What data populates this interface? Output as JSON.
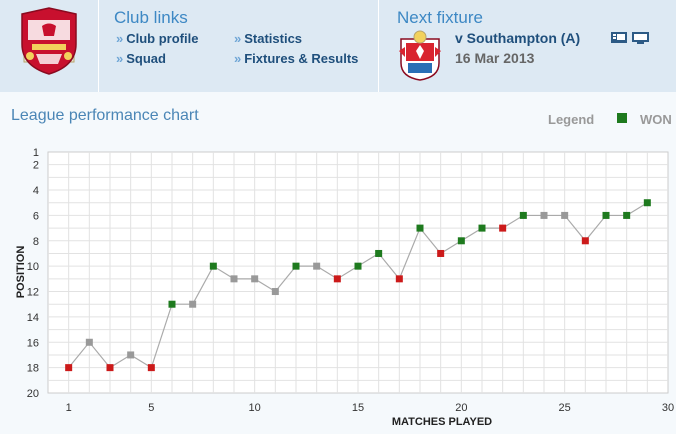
{
  "club_links": {
    "title": "Club links",
    "items": [
      {
        "label": "Club profile"
      },
      {
        "label": "Squad"
      },
      {
        "label": "Statistics"
      },
      {
        "label": "Fixtures & Results"
      }
    ]
  },
  "next_fixture": {
    "title": "Next fixture",
    "opponent": "v Southampton (A)",
    "date": "16 Mar 2013"
  },
  "chart_section": {
    "title": "League performance chart",
    "legend_label": "Legend",
    "legend_won": "WON"
  },
  "colors": {
    "won": "#1e7a1e",
    "lost": "#cc1a1a",
    "drawn": "#999999",
    "line": "#aaaaaa"
  },
  "chart_data": {
    "type": "line",
    "title": "League performance chart",
    "xlabel": "MATCHES PLAYED",
    "ylabel": "POSITION",
    "xlim": [
      0,
      30
    ],
    "ylim": [
      1,
      20
    ],
    "y_inverted": true,
    "x_ticks": [
      1,
      5,
      10,
      15,
      20,
      25,
      30
    ],
    "y_ticks": [
      1,
      2,
      4,
      6,
      8,
      10,
      12,
      14,
      16,
      18,
      20
    ],
    "grid": true,
    "legend": "top-right",
    "series": [
      {
        "name": "WON",
        "points": [
          {
            "x": 1,
            "y": 18,
            "result": "L"
          },
          {
            "x": 2,
            "y": 16,
            "result": "D"
          },
          {
            "x": 3,
            "y": 18,
            "result": "L"
          },
          {
            "x": 4,
            "y": 17,
            "result": "D"
          },
          {
            "x": 5,
            "y": 18,
            "result": "L"
          },
          {
            "x": 6,
            "y": 13,
            "result": "W"
          },
          {
            "x": 7,
            "y": 13,
            "result": "D"
          },
          {
            "x": 8,
            "y": 10,
            "result": "W"
          },
          {
            "x": 9,
            "y": 11,
            "result": "D"
          },
          {
            "x": 10,
            "y": 11,
            "result": "D"
          },
          {
            "x": 11,
            "y": 12,
            "result": "D"
          },
          {
            "x": 12,
            "y": 10,
            "result": "W"
          },
          {
            "x": 13,
            "y": 10,
            "result": "D"
          },
          {
            "x": 14,
            "y": 11,
            "result": "L"
          },
          {
            "x": 15,
            "y": 10,
            "result": "W"
          },
          {
            "x": 16,
            "y": 9,
            "result": "W"
          },
          {
            "x": 17,
            "y": 11,
            "result": "L"
          },
          {
            "x": 18,
            "y": 7,
            "result": "W"
          },
          {
            "x": 19,
            "y": 9,
            "result": "L"
          },
          {
            "x": 20,
            "y": 8,
            "result": "W"
          },
          {
            "x": 21,
            "y": 7,
            "result": "W"
          },
          {
            "x": 22,
            "y": 7,
            "result": "L"
          },
          {
            "x": 23,
            "y": 6,
            "result": "W"
          },
          {
            "x": 24,
            "y": 6,
            "result": "D"
          },
          {
            "x": 25,
            "y": 6,
            "result": "D"
          },
          {
            "x": 26,
            "y": 8,
            "result": "L"
          },
          {
            "x": 27,
            "y": 6,
            "result": "W"
          },
          {
            "x": 28,
            "y": 6,
            "result": "W"
          },
          {
            "x": 29,
            "y": 5,
            "result": "W"
          }
        ]
      }
    ]
  }
}
